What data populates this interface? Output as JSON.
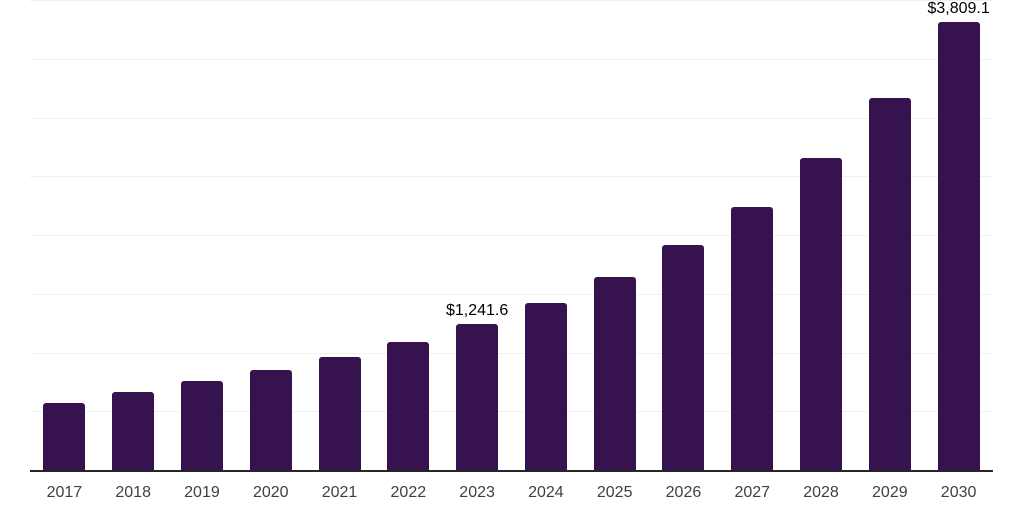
{
  "chart_data": {
    "type": "bar",
    "title": "",
    "categories": [
      "2017",
      "2018",
      "2019",
      "2020",
      "2021",
      "2022",
      "2023",
      "2024",
      "2025",
      "2026",
      "2027",
      "2028",
      "2029",
      "2030"
    ],
    "values": [
      568,
      666,
      760,
      851,
      964,
      1092,
      1241.6,
      1424,
      1646,
      1916,
      2241,
      2653,
      3164,
      3809.1
    ],
    "value_labels": [
      "",
      "",
      "",
      "",
      "",
      "",
      "$1,241.6",
      "",
      "",
      "",
      "",
      "",
      "",
      "$3,809.1"
    ],
    "xlabel": "",
    "ylabel": "",
    "ylim": [
      0,
      4000
    ],
    "grid_interval": 500,
    "grid": true,
    "legend_position": "none",
    "colors": {
      "bar": "#36124E",
      "axis_line": "#262626",
      "gridline": "#F0F0F0",
      "tick_label": "#404040",
      "value_label": "#000000",
      "background": "#FFFFFF"
    }
  }
}
